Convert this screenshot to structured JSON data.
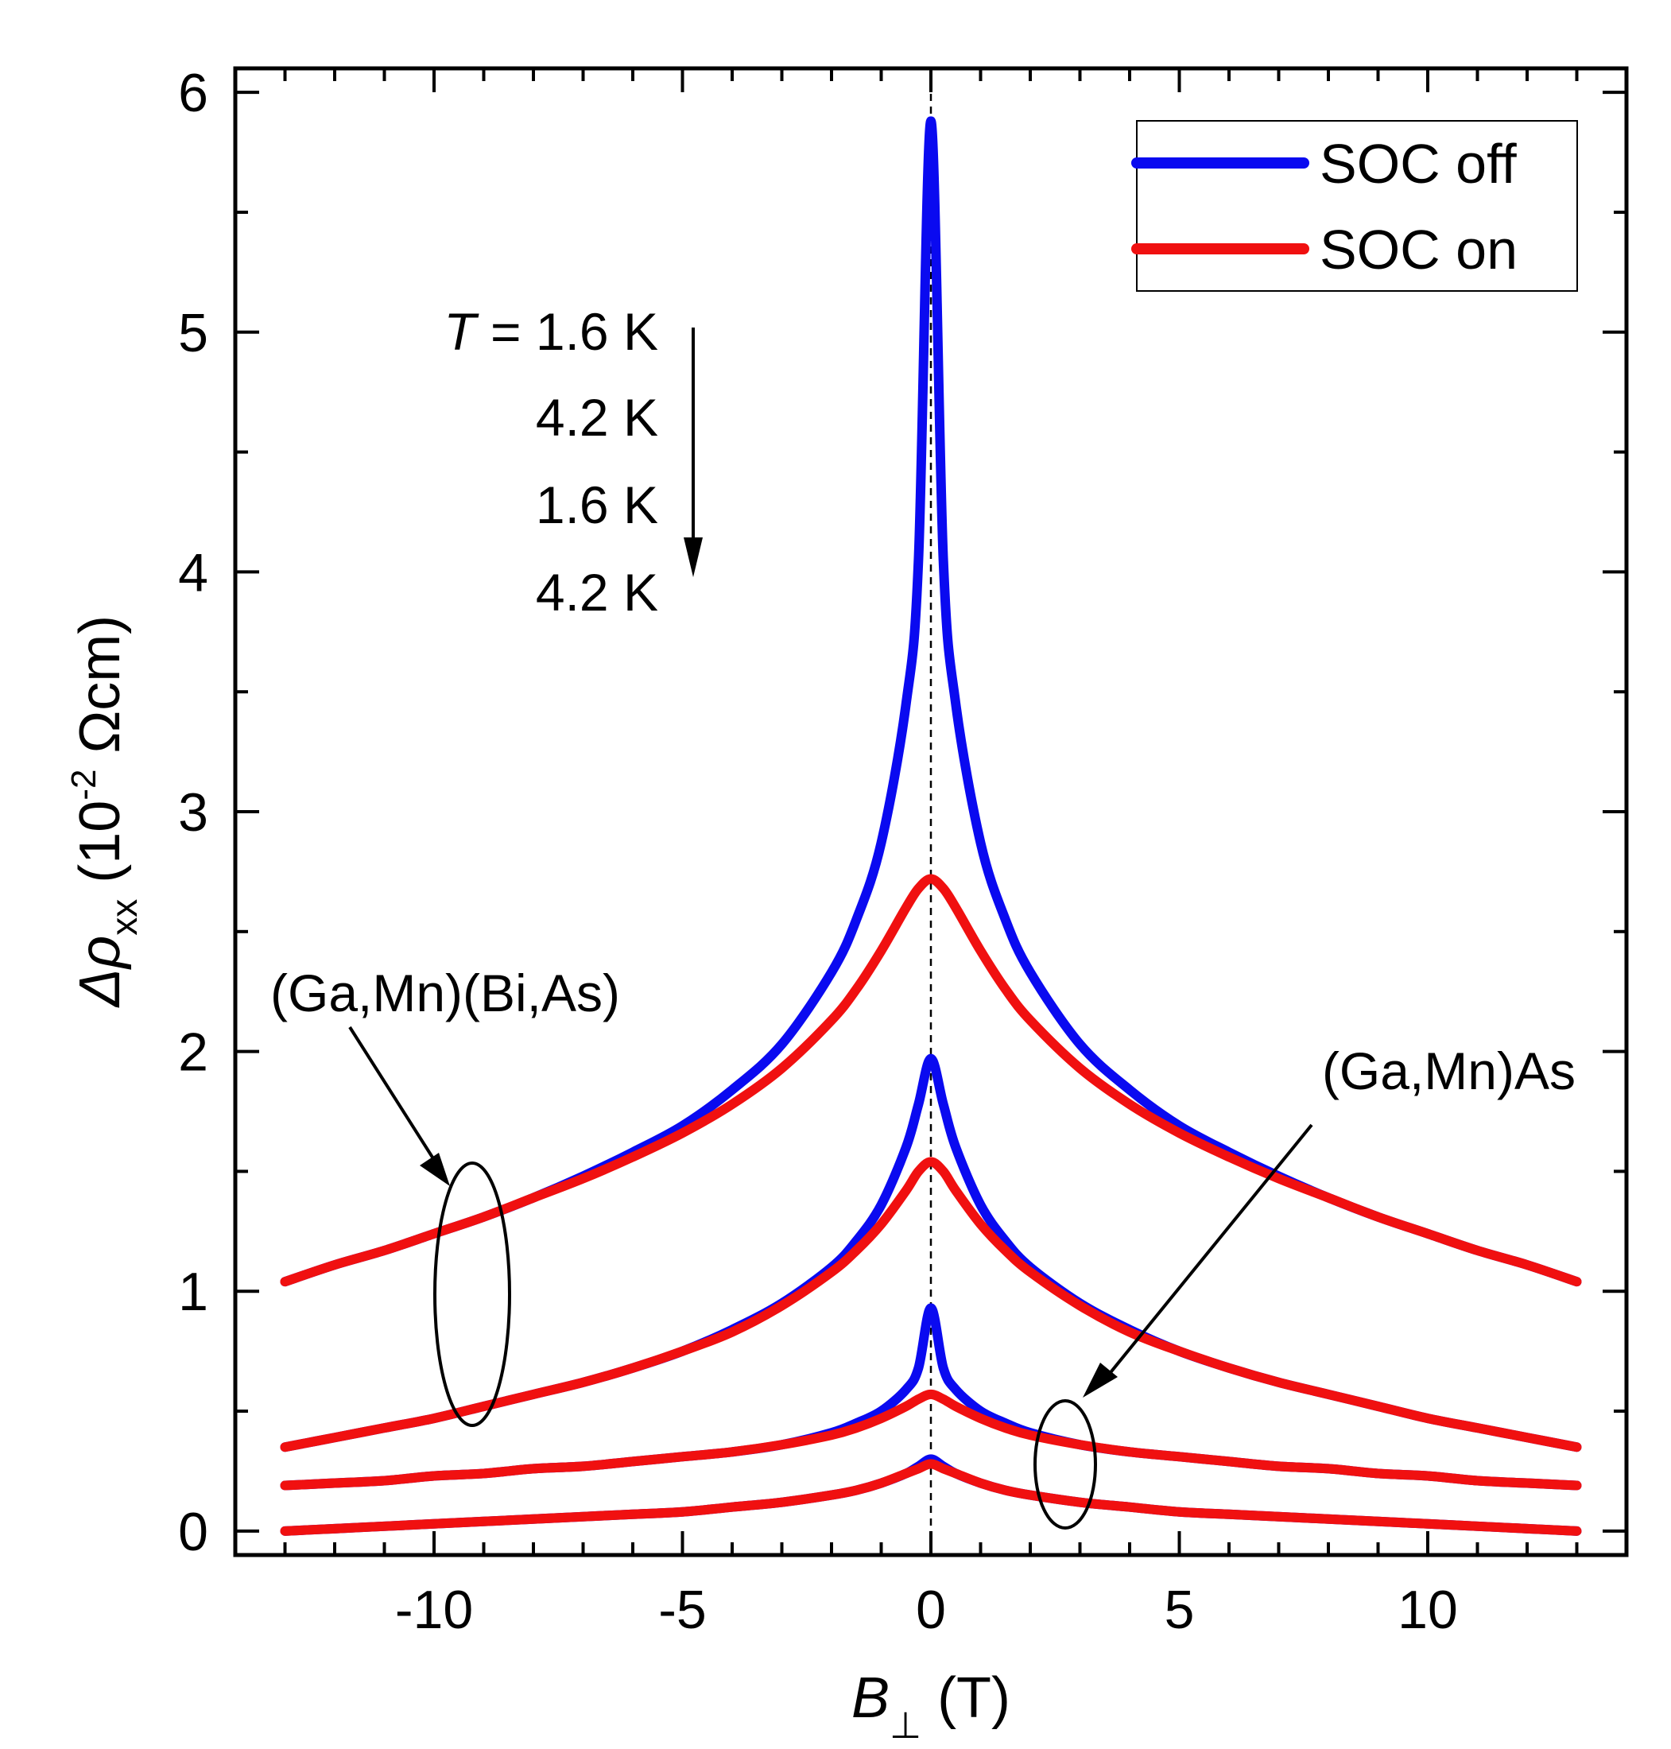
{
  "chart_data": {
    "type": "line",
    "title": "",
    "xlabel": "B",
    "xlabel_sub": "⊥",
    "xlabel_unit": " (T)",
    "ylabel": "Δρ",
    "ylabel_sub": "xx",
    "ylabel_unit_prefix": " (10",
    "ylabel_unit_exp": "-2",
    "ylabel_unit_suffix": " Ωcm)",
    "xlim": [
      -14,
      14
    ],
    "ylim": [
      -0.1,
      6.1
    ],
    "xticks": [
      -10,
      -5,
      0,
      5,
      10
    ],
    "xtick_labels": [
      "-10",
      "-5",
      "0",
      "5",
      "10"
    ],
    "yticks": [
      0,
      1,
      2,
      3,
      4,
      5,
      6
    ],
    "ytick_labels": [
      "0",
      "1",
      "2",
      "3",
      "4",
      "5",
      "6"
    ],
    "legend": {
      "placement": "top-right",
      "entries": [
        {
          "label": "SOC off",
          "color": "#0a0af0"
        },
        {
          "label": "SOC on",
          "color": "#f01010"
        }
      ]
    },
    "colors": {
      "soc_off": "#0a0af0",
      "soc_on": "#f01010"
    },
    "x": [
      -13,
      -12,
      -11,
      -10,
      -9,
      -8,
      -7,
      -6,
      -5,
      -4,
      -3,
      -2,
      -1.5,
      -1,
      -0.5,
      -0.25,
      0,
      0.25,
      0.5,
      1,
      1.5,
      2,
      3,
      4,
      5,
      6,
      7,
      8,
      9,
      10,
      11,
      12,
      13
    ],
    "series": [
      {
        "name": "SOC off",
        "sample": "(Ga,Mn)(Bi,As)",
        "T": "1.6 K",
        "color": "#0a0af0",
        "values": [
          1.04,
          1.11,
          1.17,
          1.24,
          1.31,
          1.39,
          1.48,
          1.58,
          1.69,
          1.84,
          2.03,
          2.33,
          2.55,
          2.87,
          3.45,
          4.05,
          5.88,
          4.05,
          3.45,
          2.87,
          2.55,
          2.33,
          2.03,
          1.84,
          1.69,
          1.58,
          1.48,
          1.39,
          1.31,
          1.24,
          1.17,
          1.11,
          1.04
        ]
      },
      {
        "name": "SOC on",
        "sample": "(Ga,Mn)(Bi,As)",
        "T": "1.6 K",
        "color": "#f01010",
        "values": [
          1.04,
          1.11,
          1.17,
          1.24,
          1.31,
          1.39,
          1.47,
          1.56,
          1.66,
          1.78,
          1.93,
          2.13,
          2.26,
          2.42,
          2.6,
          2.68,
          2.72,
          2.68,
          2.6,
          2.42,
          2.26,
          2.13,
          1.93,
          1.78,
          1.66,
          1.56,
          1.47,
          1.39,
          1.31,
          1.24,
          1.17,
          1.11,
          1.04
        ]
      },
      {
        "name": "SOC off",
        "sample": "(Ga,Mn)(Bi,As)",
        "T": "4.2 K",
        "color": "#0a0af0",
        "values": [
          0.35,
          0.39,
          0.43,
          0.47,
          0.52,
          0.57,
          0.62,
          0.68,
          0.75,
          0.84,
          0.95,
          1.1,
          1.21,
          1.36,
          1.6,
          1.78,
          1.97,
          1.78,
          1.6,
          1.36,
          1.21,
          1.1,
          0.95,
          0.84,
          0.75,
          0.68,
          0.62,
          0.57,
          0.52,
          0.47,
          0.43,
          0.39,
          0.35
        ]
      },
      {
        "name": "SOC on",
        "sample": "(Ga,Mn)(Bi,As)",
        "T": "4.2 K",
        "color": "#f01010",
        "values": [
          0.35,
          0.39,
          0.43,
          0.47,
          0.52,
          0.57,
          0.62,
          0.68,
          0.75,
          0.83,
          0.94,
          1.08,
          1.17,
          1.28,
          1.42,
          1.5,
          1.54,
          1.5,
          1.42,
          1.28,
          1.17,
          1.08,
          0.94,
          0.83,
          0.75,
          0.68,
          0.62,
          0.57,
          0.52,
          0.47,
          0.43,
          0.39,
          0.35
        ]
      },
      {
        "name": "SOC off",
        "sample": "(Ga,Mn)As",
        "T": "1.6 K",
        "color": "#0a0af0",
        "values": [
          0.19,
          0.2,
          0.21,
          0.23,
          0.24,
          0.26,
          0.27,
          0.29,
          0.31,
          0.33,
          0.36,
          0.41,
          0.45,
          0.5,
          0.59,
          0.68,
          0.93,
          0.68,
          0.59,
          0.5,
          0.45,
          0.41,
          0.36,
          0.33,
          0.31,
          0.29,
          0.27,
          0.26,
          0.24,
          0.23,
          0.21,
          0.2,
          0.19
        ]
      },
      {
        "name": "SOC on",
        "sample": "(Ga,Mn)As",
        "T": "1.6 K",
        "color": "#f01010",
        "values": [
          0.19,
          0.2,
          0.21,
          0.23,
          0.24,
          0.26,
          0.27,
          0.29,
          0.31,
          0.33,
          0.36,
          0.4,
          0.43,
          0.47,
          0.52,
          0.55,
          0.57,
          0.55,
          0.52,
          0.47,
          0.43,
          0.4,
          0.36,
          0.33,
          0.31,
          0.29,
          0.27,
          0.26,
          0.24,
          0.23,
          0.21,
          0.2,
          0.19
        ]
      },
      {
        "name": "SOC off",
        "sample": "(Ga,Mn)As",
        "T": "4.2 K",
        "color": "#0a0af0",
        "values": [
          0.0,
          0.01,
          0.02,
          0.03,
          0.04,
          0.05,
          0.06,
          0.07,
          0.08,
          0.1,
          0.12,
          0.15,
          0.17,
          0.2,
          0.24,
          0.27,
          0.3,
          0.27,
          0.24,
          0.2,
          0.17,
          0.15,
          0.12,
          0.1,
          0.08,
          0.07,
          0.06,
          0.05,
          0.04,
          0.03,
          0.02,
          0.01,
          0.0
        ]
      },
      {
        "name": "SOC on",
        "sample": "(Ga,Mn)As",
        "T": "4.2 K",
        "color": "#f01010",
        "values": [
          0.0,
          0.01,
          0.02,
          0.03,
          0.04,
          0.05,
          0.06,
          0.07,
          0.08,
          0.1,
          0.12,
          0.15,
          0.17,
          0.2,
          0.24,
          0.26,
          0.28,
          0.26,
          0.24,
          0.2,
          0.17,
          0.15,
          0.12,
          0.1,
          0.08,
          0.07,
          0.06,
          0.05,
          0.04,
          0.03,
          0.02,
          0.01,
          0.0
        ]
      }
    ],
    "annotations": {
      "t_prefix": "T",
      "t_first": " = 1.6 K",
      "t_list": [
        "4.2 K",
        "1.6 K",
        "4.2 K"
      ],
      "sample_left": "(Ga,Mn)(Bi,As)",
      "sample_right": "(Ga,Mn)As"
    }
  }
}
